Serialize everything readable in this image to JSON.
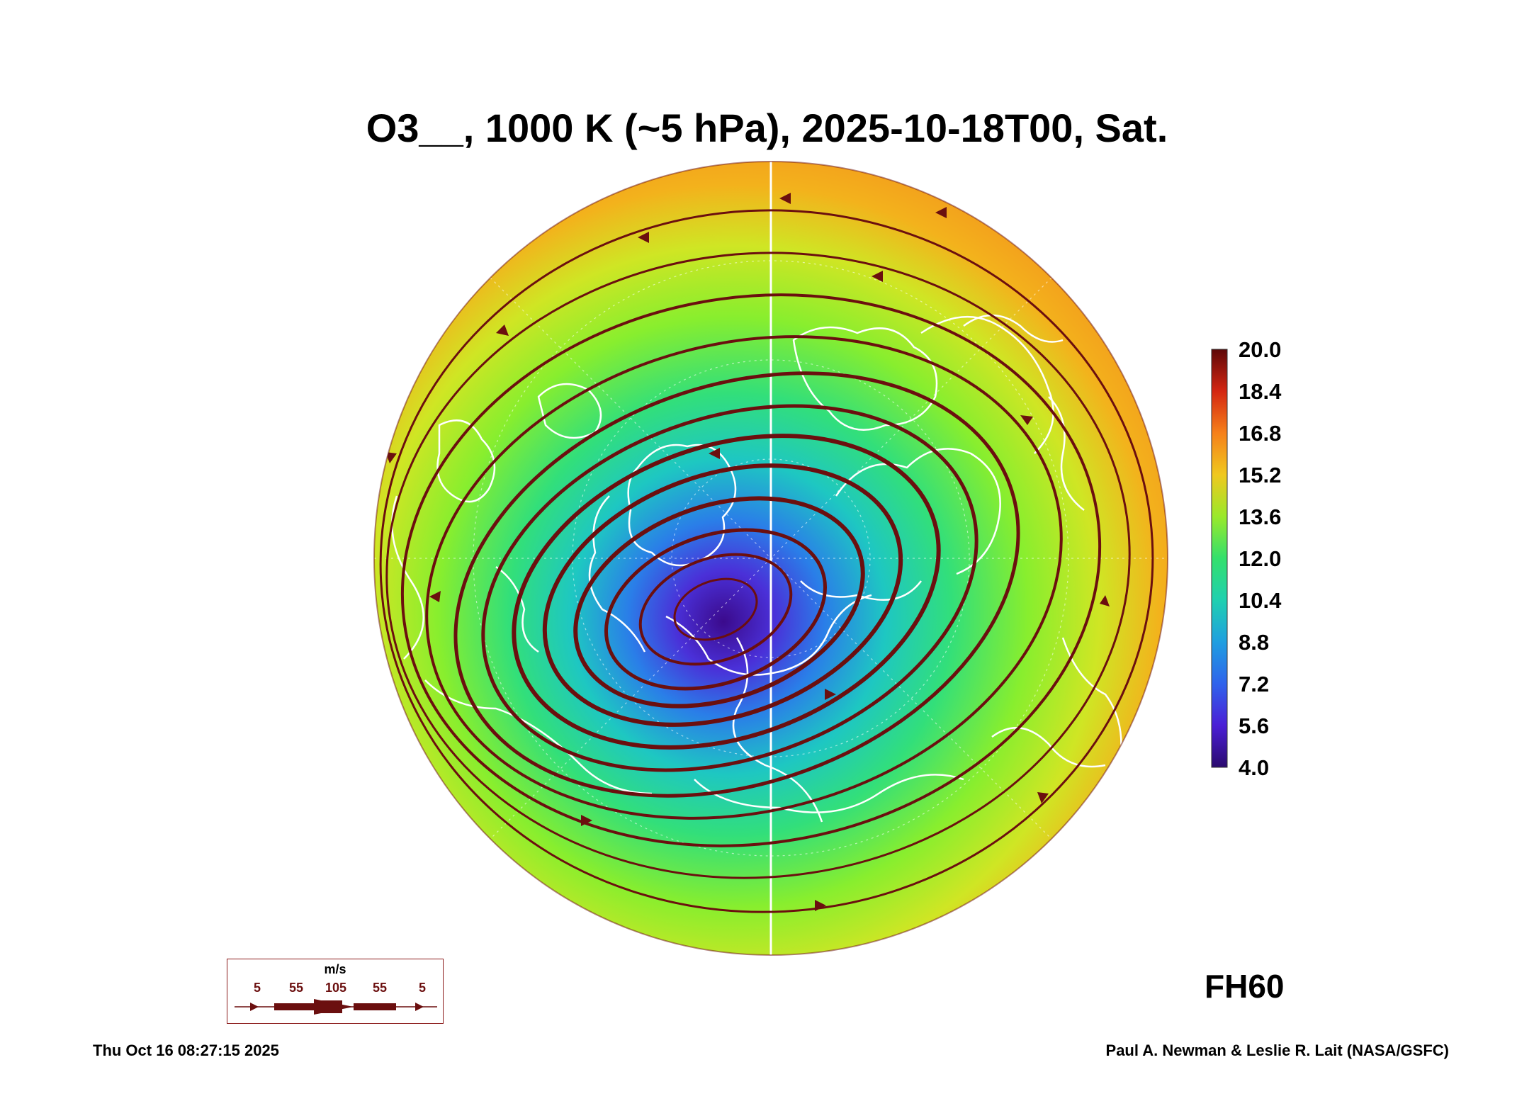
{
  "title": "O3__, 1000 K (~5 hPa), 2025-10-18T00, Sat.",
  "colorbar": {
    "labels": [
      "20.0",
      "18.4",
      "16.8",
      "15.2",
      "13.6",
      "12.0",
      "10.4",
      "8.8",
      "7.2",
      "5.6",
      "4.0"
    ],
    "min": 4.0,
    "max": 20.0,
    "colors": [
      "#3b0a8c",
      "#3f3fe6",
      "#2a8fe8",
      "#19c9c9",
      "#2fe07a",
      "#86ef2c",
      "#d7e81e",
      "#f4b31c",
      "#f7801a",
      "#ef3b14",
      "#b01010",
      "#5e0808"
    ]
  },
  "forecast_hour": "FH60",
  "wind_legend": {
    "unit": "m/s",
    "values": [
      "5",
      "55",
      "105",
      "55",
      "5"
    ],
    "color": "#6b0f0f"
  },
  "footer": {
    "timestamp": "Thu Oct 16 08:27:15 2025",
    "credit": "Paul A. Newman & Leslie R. Lait (NASA/GSFC)"
  },
  "colors": {
    "streamline": "#6b0f0f",
    "coastline": "#ffffff",
    "outer_ring": "#f39a1e"
  }
}
